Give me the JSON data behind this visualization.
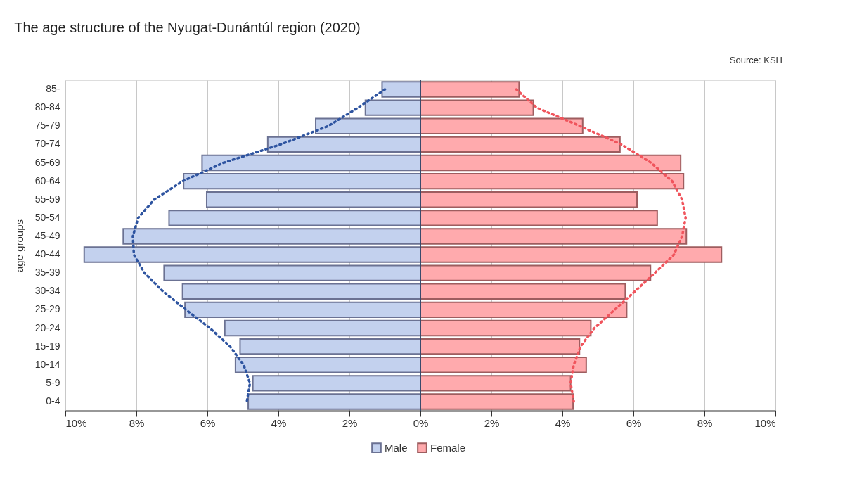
{
  "chart_data": {
    "type": "bar",
    "orientation": "horizontal",
    "title": "The age structure of the Nyugat-Dunántúl region (2020)",
    "ylabel": "age groups",
    "annotations": [
      "Source: KSH"
    ],
    "categories": [
      "85-",
      "80-84",
      "75-79",
      "70-74",
      "65-69",
      "60-64",
      "55-59",
      "50-54",
      "45-49",
      "40-44",
      "35-39",
      "30-34",
      "25-29",
      "20-24",
      "15-19",
      "10-14",
      "5-9",
      "0-4"
    ],
    "series": [
      {
        "name": "Male",
        "type": "bar",
        "color": "#c3d1ee",
        "values": [
          -1.08,
          -1.55,
          -2.95,
          -4.3,
          -6.15,
          -6.67,
          -6.02,
          -7.08,
          -8.37,
          -9.47,
          -7.22,
          -6.7,
          -6.63,
          -5.51,
          -5.08,
          -5.21,
          -4.72,
          -4.85
        ]
      },
      {
        "name": "Female",
        "type": "bar",
        "color": "#ffaaad",
        "values": [
          2.78,
          3.18,
          4.57,
          5.62,
          7.33,
          7.41,
          6.1,
          6.67,
          7.49,
          8.48,
          6.48,
          5.77,
          5.81,
          4.8,
          4.48,
          4.67,
          4.23,
          4.3
        ]
      },
      {
        "type": "line",
        "color": "#2e54a0",
        "line_style": "dotted",
        "marker": "none",
        "values": [
          -1.0,
          -1.76,
          -2.6,
          -3.94,
          -5.55,
          -6.7,
          -7.5,
          -7.95,
          -8.1,
          -8.07,
          -7.77,
          -7.25,
          -6.6,
          -5.93,
          -5.36,
          -4.98,
          -4.8,
          -4.89
        ]
      },
      {
        "type": "line",
        "color": "#f0545c",
        "line_style": "dotted",
        "marker": "none",
        "values": [
          2.7,
          3.28,
          4.5,
          5.66,
          6.5,
          7.09,
          7.37,
          7.47,
          7.37,
          7.14,
          6.6,
          6.04,
          5.47,
          4.9,
          4.51,
          4.32,
          4.23,
          4.32
        ]
      }
    ],
    "xlim": [
      -10,
      10
    ],
    "xticks": [
      {
        "value": -10,
        "label": "10%"
      },
      {
        "value": -8,
        "label": "8%"
      },
      {
        "value": -6,
        "label": "6%"
      },
      {
        "value": -4,
        "label": "4%"
      },
      {
        "value": -2,
        "label": "2%"
      },
      {
        "value": 0,
        "label": "0%"
      },
      {
        "value": 2,
        "label": "2%"
      },
      {
        "value": 4,
        "label": "4%"
      },
      {
        "value": 6,
        "label": "6%"
      },
      {
        "value": 8,
        "label": "8%"
      },
      {
        "value": 10,
        "label": "10%"
      }
    ],
    "ref_lines": [
      {
        "axis": "x",
        "value": 0,
        "color": "#3a4a6b"
      }
    ],
    "grid": "x",
    "legend": "bottom",
    "stacked": true
  }
}
